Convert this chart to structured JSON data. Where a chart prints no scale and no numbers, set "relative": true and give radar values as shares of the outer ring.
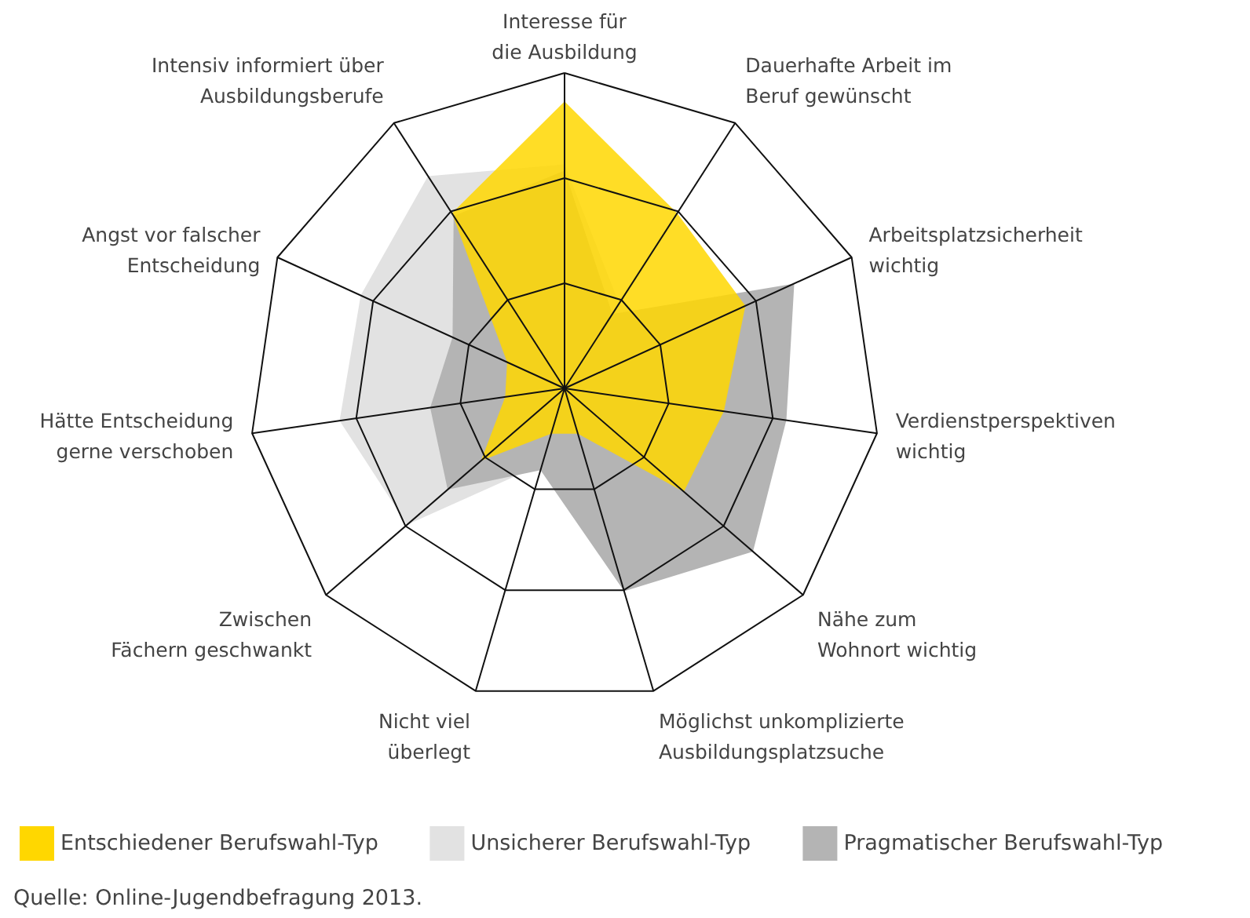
{
  "chart_data": {
    "type": "radar",
    "relative": true,
    "grid": true,
    "legend": "bottom",
    "categories": [
      "Interesse für\ndie Ausbildung",
      "Dauerhafte Arbeit im\nBeruf gewünscht",
      "Arbeitsplatzsicherheit\nwichtig",
      "Verdienstperspektiven\nwichtig",
      "Nähe zum\nWohnort wichtig",
      "Möglichst unkomplizierte\nAusbildungsplatzsuche",
      "Nicht viel\nüberlegt",
      "Zwischen\nFächern geschwankt",
      "Hätte Entscheidung\ngerne verschoben",
      "Angst vor falscher\nEntscheidung",
      "Intensiv informiert über\nAusbildungsberufe"
    ],
    "series": [
      {
        "name": "Unsicherer Berufswahl-Typ",
        "color": "#e2e2e2",
        "values": [
          0.71,
          0.32,
          0.4,
          0.4,
          0.35,
          0.25,
          0.25,
          0.66,
          0.72,
          0.71,
          0.8
        ]
      },
      {
        "name": "Pragmatischer Berufswahl-Typ",
        "color": "#b4b4b4",
        "values": [
          0.69,
          0.28,
          0.8,
          0.71,
          0.79,
          0.67,
          0.27,
          0.49,
          0.43,
          0.39,
          0.65
        ]
      },
      {
        "name": "Entschiedener Berufswahl-Typ",
        "color": "#ffd700",
        "values": [
          0.91,
          0.66,
          0.63,
          0.51,
          0.5,
          0.15,
          0.15,
          0.35,
          0.19,
          0.2,
          0.66
        ]
      }
    ],
    "annotations": [
      "Quelle: Online-Jugendbefragung 2013."
    ]
  }
}
